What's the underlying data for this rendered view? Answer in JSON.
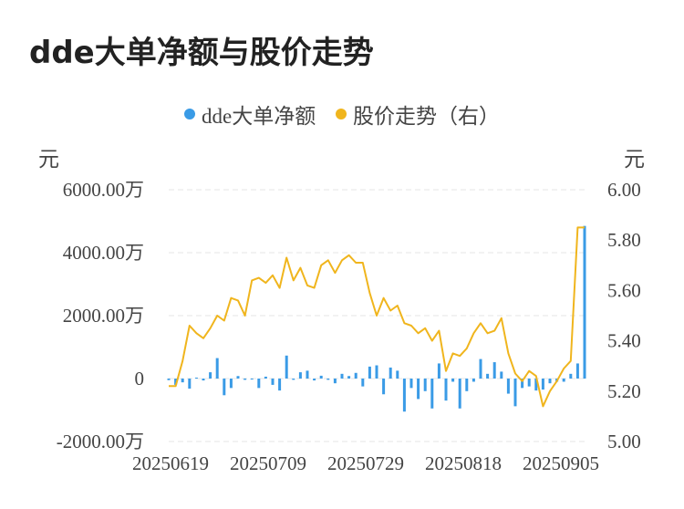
{
  "title": "dde大单净额与股价走势",
  "legend": [
    {
      "label": "dde大单净额",
      "color": "#3a9be6"
    },
    {
      "label": "股价走势（右）",
      "color": "#f0b51d"
    }
  ],
  "units": {
    "left": "元",
    "right": "元"
  },
  "chart_data": {
    "type": "bar+line",
    "x_tick_labels": [
      "20250619",
      "20250709",
      "20250729",
      "20250818",
      "20250905"
    ],
    "left_axis": {
      "ticks": [
        6000,
        4000,
        2000,
        0,
        -2000
      ],
      "tick_labels": [
        "6000.00万",
        "4000.00万",
        "2000.00万",
        "0",
        "-2000.00万"
      ],
      "ylim": [
        -2000,
        6000
      ]
    },
    "right_axis": {
      "ticks": [
        6.0,
        5.8,
        5.6,
        5.4,
        5.2,
        5.0
      ],
      "tick_labels": [
        "6.00",
        "5.80",
        "5.60",
        "5.40",
        "5.20",
        "5.00"
      ],
      "ylim": [
        5.0,
        6.0
      ]
    },
    "series": [
      {
        "name": "dde大单净额",
        "type": "bar",
        "color": "#3a9be6",
        "values": [
          -50,
          -200,
          -120,
          -320,
          30,
          -60,
          200,
          650,
          -530,
          -300,
          80,
          -40,
          -30,
          -300,
          60,
          -200,
          -380,
          730,
          -40,
          200,
          250,
          -60,
          90,
          -40,
          -150,
          150,
          80,
          180,
          -250,
          380,
          420,
          -500,
          350,
          250,
          -1050,
          -300,
          -650,
          -400,
          -950,
          480,
          -700,
          -100,
          -950,
          -400,
          -100,
          620,
          150,
          520,
          220,
          -480,
          -880,
          -300,
          -250,
          -380,
          -350,
          -150,
          -100,
          -100,
          150,
          480,
          4850
        ]
      },
      {
        "name": "股价走势（右）",
        "type": "line",
        "color": "#f0b51d",
        "values": [
          5.22,
          5.22,
          5.32,
          5.46,
          5.43,
          5.41,
          5.45,
          5.5,
          5.48,
          5.57,
          5.56,
          5.5,
          5.64,
          5.65,
          5.63,
          5.66,
          5.61,
          5.73,
          5.64,
          5.69,
          5.62,
          5.61,
          5.7,
          5.72,
          5.67,
          5.72,
          5.74,
          5.71,
          5.71,
          5.59,
          5.5,
          5.57,
          5.52,
          5.54,
          5.47,
          5.46,
          5.43,
          5.45,
          5.4,
          5.44,
          5.28,
          5.35,
          5.34,
          5.37,
          5.43,
          5.47,
          5.43,
          5.44,
          5.49,
          5.35,
          5.27,
          5.24,
          5.28,
          5.26,
          5.14,
          5.2,
          5.24,
          5.29,
          5.32,
          5.85,
          5.85
        ]
      }
    ],
    "grid": true
  }
}
